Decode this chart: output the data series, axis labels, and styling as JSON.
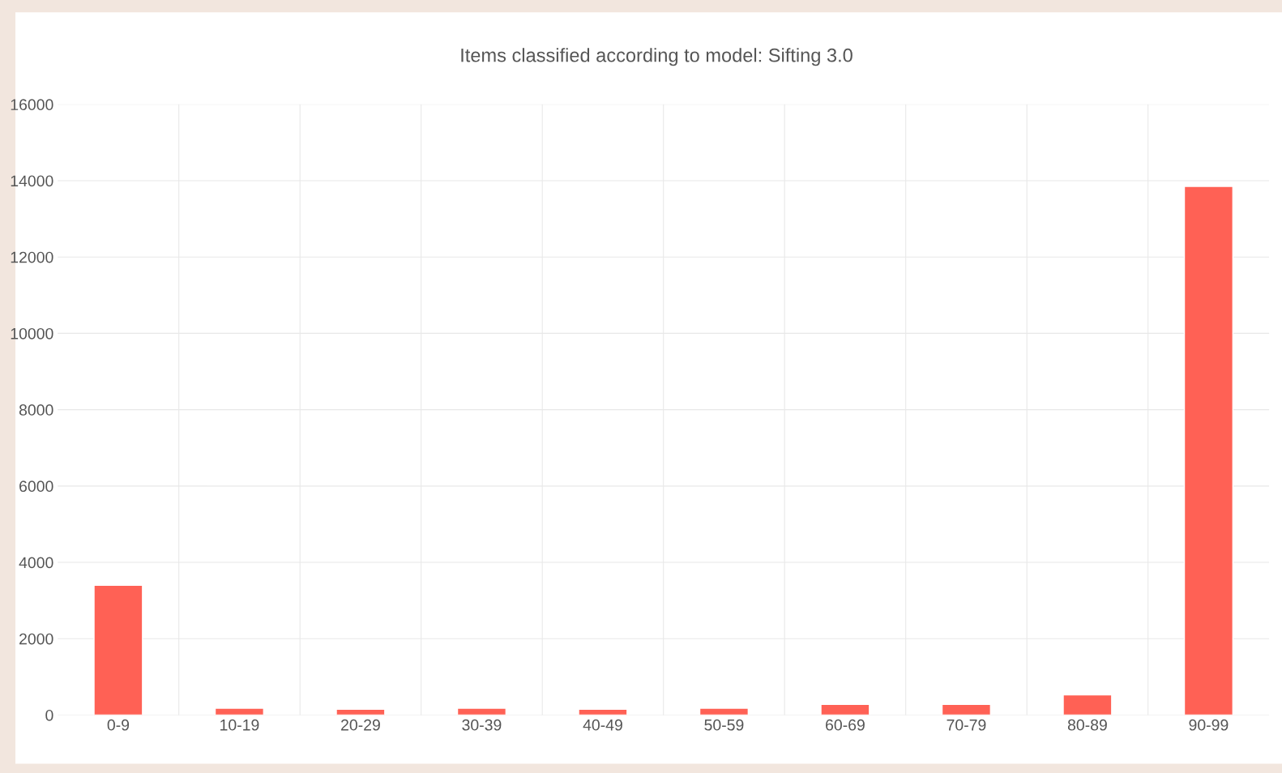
{
  "chart_data": {
    "type": "bar",
    "title": "Items classified according to model: Sifting 3.0",
    "categories": [
      "0-9",
      "10-19",
      "20-29",
      "30-39",
      "40-49",
      "50-59",
      "60-69",
      "70-79",
      "80-89",
      "90-99"
    ],
    "values": [
      3400,
      180,
      150,
      180,
      150,
      180,
      280,
      280,
      530,
      13850
    ],
    "color": "#ff6155",
    "ylim": [
      0,
      16000
    ],
    "yticks": [
      0,
      2000,
      4000,
      6000,
      8000,
      10000,
      12000,
      14000,
      16000
    ],
    "grid": true
  }
}
